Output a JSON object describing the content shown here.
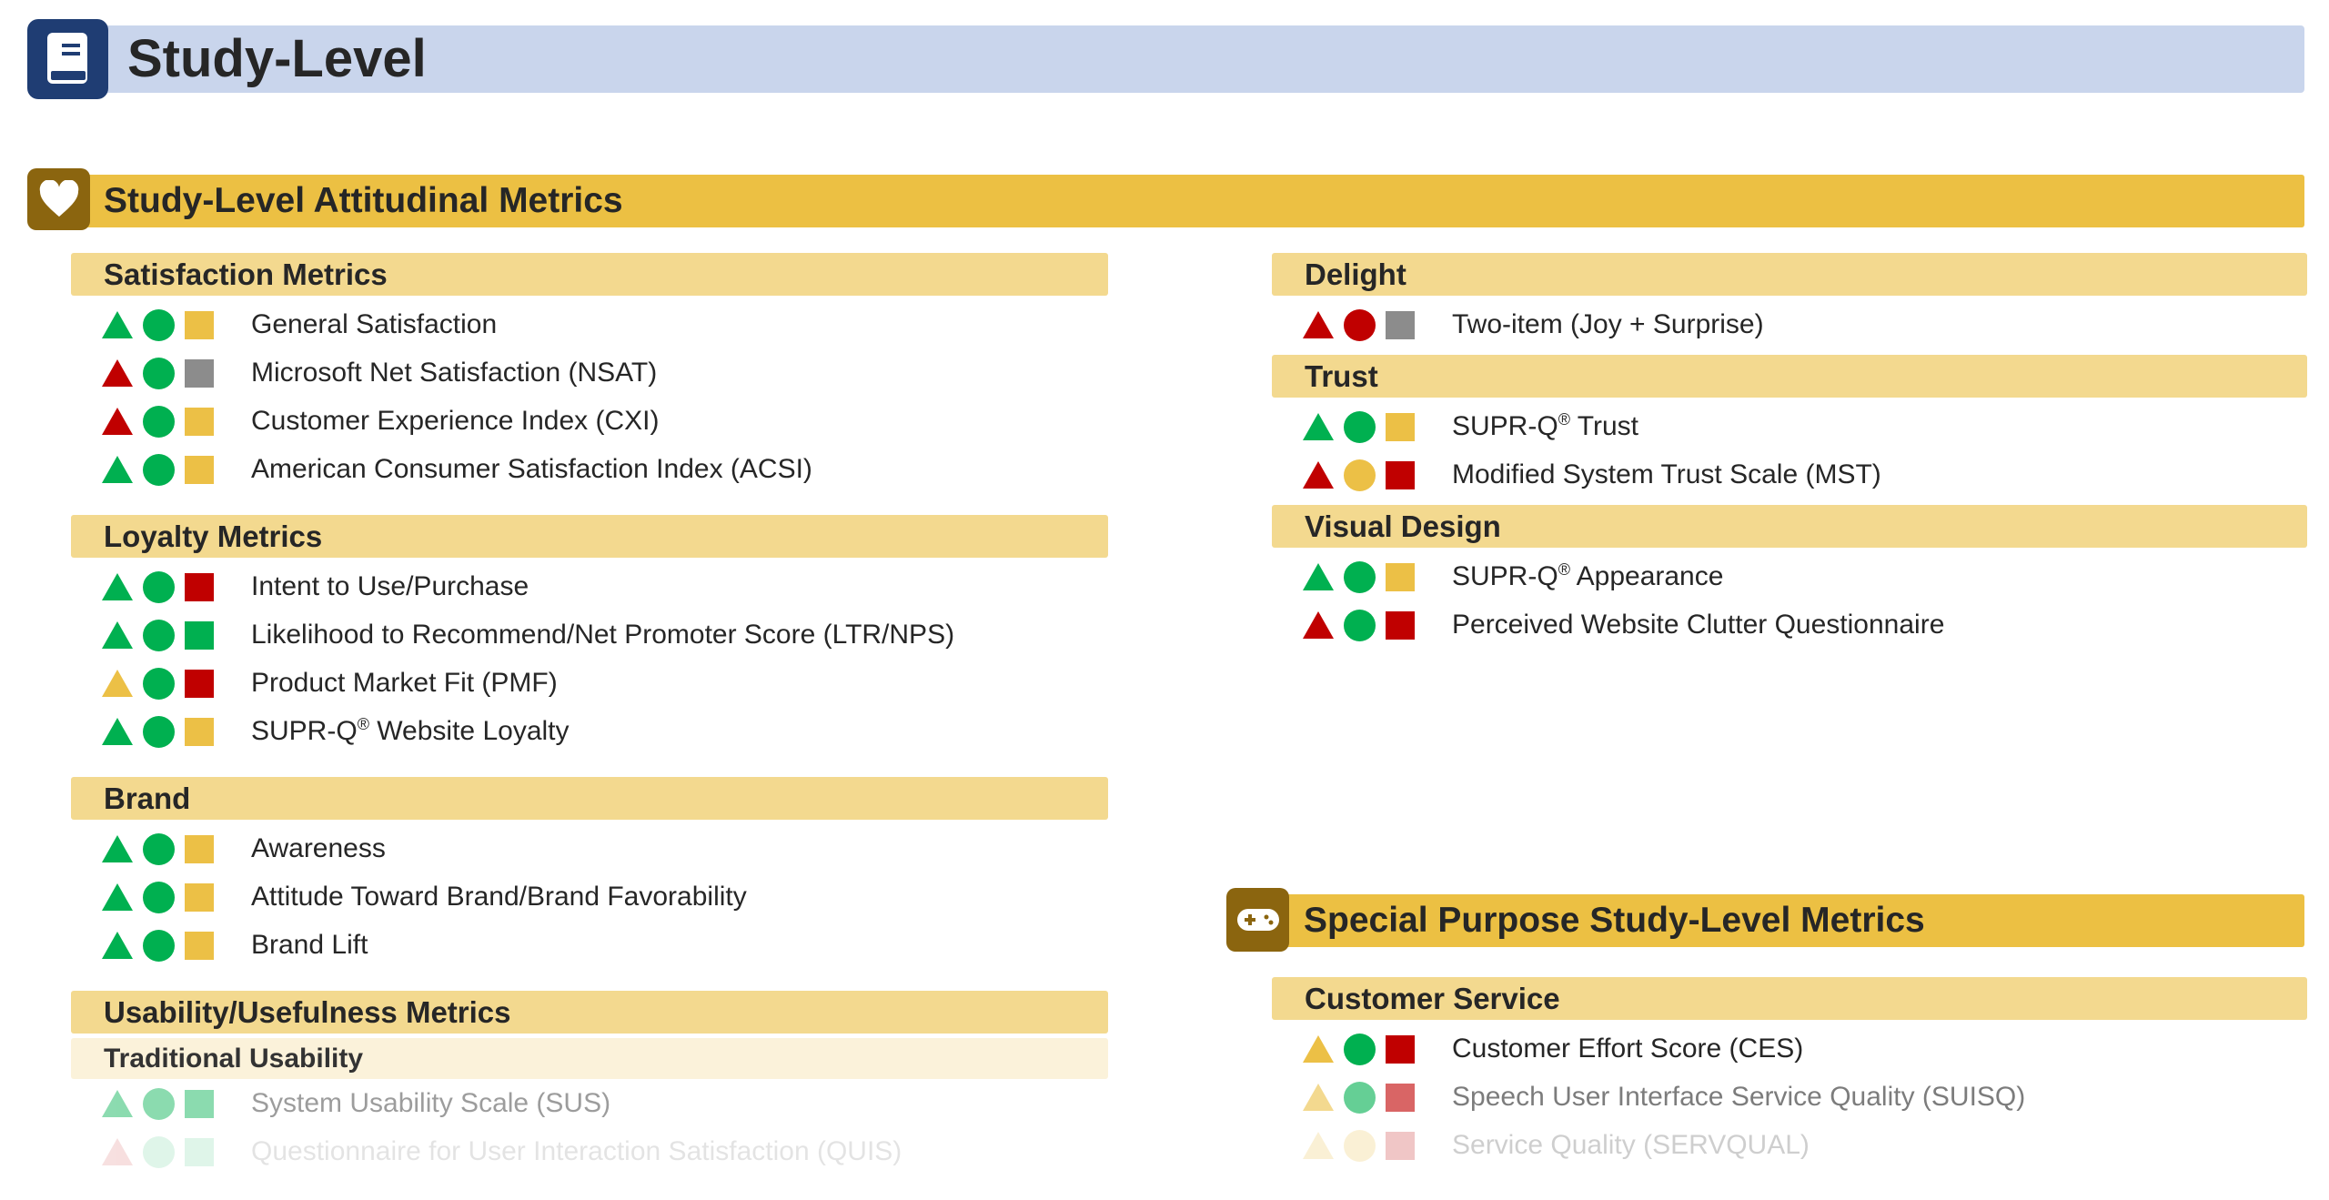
{
  "header": {
    "title": "Study-Level",
    "icon": "book-icon",
    "color": "#1f3d73",
    "bar_color": "#c9d5ec"
  },
  "colors": {
    "green": "#00b050",
    "red": "#c00000",
    "yellow": "#ecc046",
    "gray": "#8c8c8c"
  },
  "attitudinal": {
    "title": "Study-Level Attitudinal Metrics",
    "icon": "heart-icon",
    "left": [
      {
        "title": "Satisfaction Metrics",
        "items": [
          {
            "name": "General Satisfaction",
            "shapes": [
              "green",
              "green",
              "yellow"
            ]
          },
          {
            "name": "Microsoft Net Satisfaction (NSAT)",
            "shapes": [
              "red",
              "green",
              "gray"
            ]
          },
          {
            "name": "Customer Experience Index (CXI)",
            "shapes": [
              "red",
              "green",
              "yellow"
            ]
          },
          {
            "name": "American Consumer Satisfaction Index (ACSI)",
            "shapes": [
              "green",
              "green",
              "yellow"
            ]
          }
        ]
      },
      {
        "title": "Loyalty Metrics",
        "items": [
          {
            "name": "Intent to Use/Purchase",
            "shapes": [
              "green",
              "green",
              "red"
            ]
          },
          {
            "name": "Likelihood to Recommend/Net Promoter Score (LTR/NPS)",
            "shapes": [
              "green",
              "green",
              "green"
            ]
          },
          {
            "name": "Product Market Fit (PMF)",
            "shapes": [
              "yellow",
              "green",
              "red"
            ]
          },
          {
            "name": "SUPR-Q",
            "sup": "®",
            "rest": " Website Loyalty",
            "shapes": [
              "green",
              "green",
              "yellow"
            ]
          }
        ]
      },
      {
        "title": "Brand",
        "items": [
          {
            "name": "Awareness",
            "shapes": [
              "green",
              "green",
              "yellow"
            ]
          },
          {
            "name": "Attitude Toward Brand/Brand Favorability",
            "shapes": [
              "green",
              "green",
              "yellow"
            ]
          },
          {
            "name": "Brand Lift",
            "shapes": [
              "green",
              "green",
              "yellow"
            ]
          }
        ]
      },
      {
        "title": "Usability/Usefulness Metrics",
        "subtitle": "Traditional Usability",
        "items": [
          {
            "name": "System Usability Scale (SUS)",
            "shapes": [
              "green",
              "green",
              "green"
            ],
            "fade": 0.45
          },
          {
            "name": "Questionnaire for User Interaction Satisfaction (QUIS)",
            "shapes": [
              "red",
              "green",
              "green"
            ],
            "fade": 0.12
          }
        ]
      }
    ],
    "right": [
      {
        "title": "Delight",
        "items": [
          {
            "name": "Two-item (Joy + Surprise)",
            "shapes": [
              "red",
              "red",
              "gray"
            ]
          }
        ]
      },
      {
        "title": "Trust",
        "items": [
          {
            "name": "SUPR-Q",
            "sup": "®",
            "rest": " Trust",
            "shapes": [
              "green",
              "green",
              "yellow"
            ]
          },
          {
            "name": "Modified System Trust Scale (MST)",
            "shapes": [
              "red",
              "yellow",
              "red"
            ]
          }
        ]
      },
      {
        "title": "Visual Design",
        "items": [
          {
            "name": "SUPR-Q",
            "sup": "®",
            "rest": " Appearance",
            "shapes": [
              "green",
              "green",
              "yellow"
            ]
          },
          {
            "name": "Perceived Website Clutter Questionnaire",
            "shapes": [
              "red",
              "green",
              "red"
            ]
          }
        ]
      }
    ]
  },
  "special": {
    "title": "Special Purpose Study-Level Metrics",
    "icon": "gamepad-icon",
    "groups": [
      {
        "title": "Customer Service",
        "items": [
          {
            "name": "Customer Effort Score (CES)",
            "shapes": [
              "yellow",
              "green",
              "red"
            ]
          },
          {
            "name": "Speech User Interface Service Quality (SUISQ)",
            "shapes": [
              "yellow",
              "green",
              "red"
            ],
            "fade": 0.6
          },
          {
            "name": "Service Quality (SERVQUAL)",
            "shapes": [
              "yellow",
              "yellow",
              "red"
            ],
            "fade": 0.22
          }
        ]
      }
    ]
  }
}
